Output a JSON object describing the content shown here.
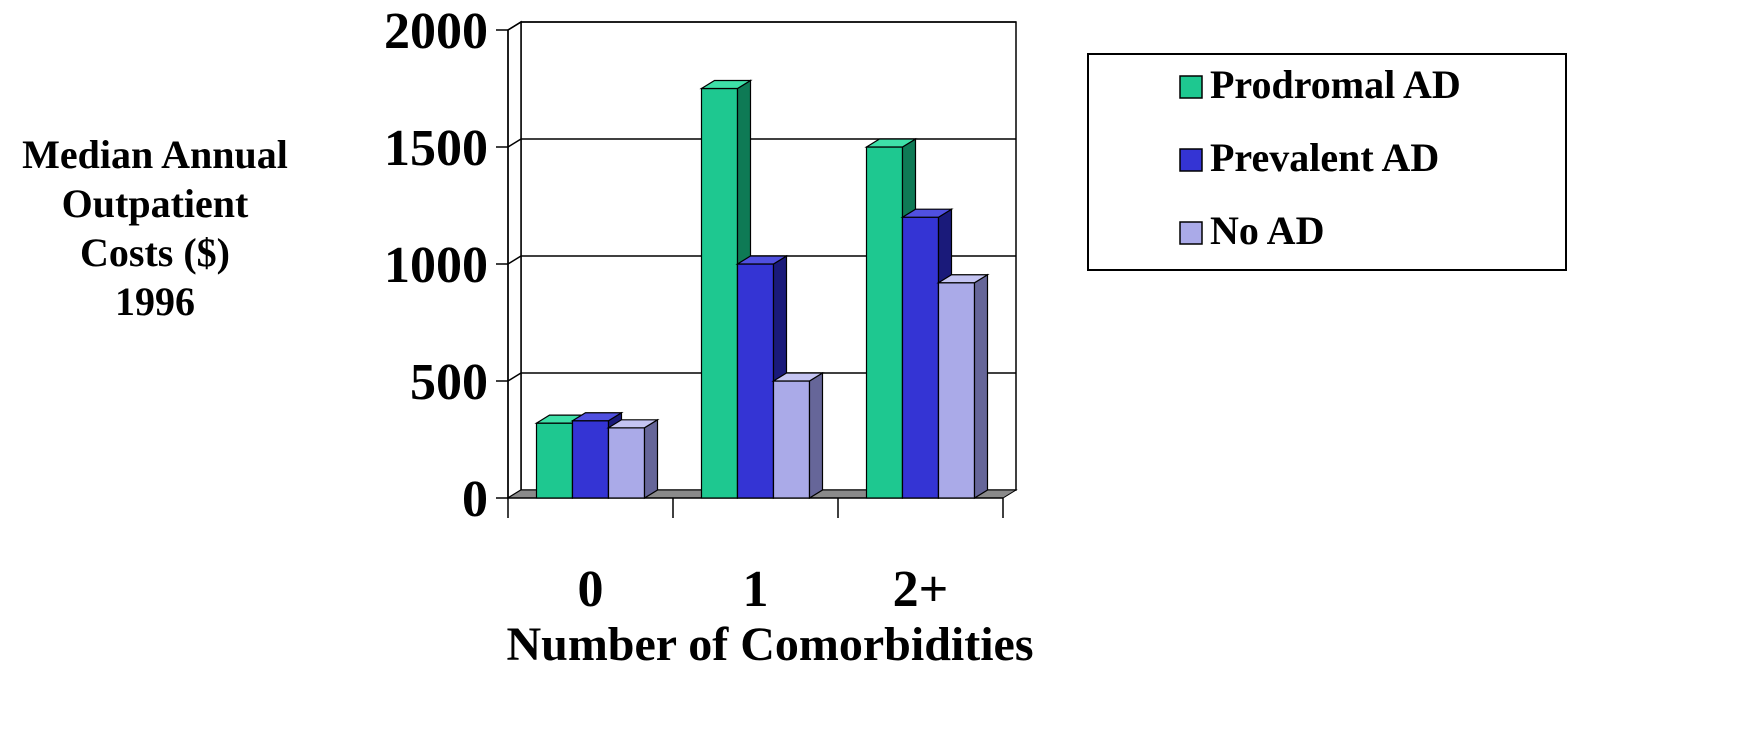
{
  "chart_data": {
    "type": "bar",
    "style": "3d-clustered",
    "ylabel_lines": [
      "Median Annual",
      "Outpatient",
      "Costs ($)",
      "1996"
    ],
    "xlabel": "Number of Comorbidities",
    "categories": [
      "0",
      "1",
      "2+"
    ],
    "yticks": [
      "0",
      "500",
      "1000",
      "1500",
      "2000"
    ],
    "ylim": [
      0,
      2000
    ],
    "grid": true,
    "legend_position": "right",
    "series": [
      {
        "name": "Prodromal AD",
        "values": [
          320,
          1750,
          1500
        ],
        "color": "#1ec890",
        "side_color": "#0e7a55",
        "top_color": "#3ee0a8"
      },
      {
        "name": "Prevalent AD",
        "values": [
          330,
          1000,
          1200
        ],
        "color": "#3434d4",
        "side_color": "#1a1a7a",
        "top_color": "#5050e0"
      },
      {
        "name": "No AD",
        "values": [
          300,
          500,
          920
        ],
        "color": "#aaaae8",
        "side_color": "#666699",
        "top_color": "#c4c4f2"
      }
    ]
  }
}
